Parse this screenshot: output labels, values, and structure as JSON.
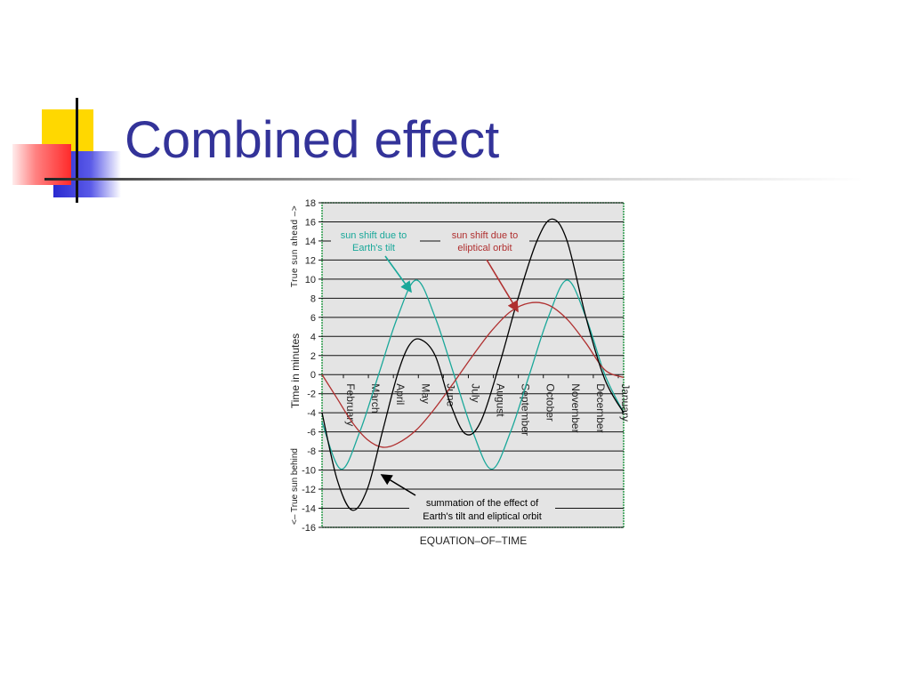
{
  "slide": {
    "title": "Combined effect"
  },
  "chart_data": {
    "type": "line",
    "xlabel": "EQUATION–OF–TIME",
    "ylabel": "Time in minutes",
    "ylabel_top": "True sun ahead –>",
    "ylabel_bottom": "<– True sun behind",
    "ylim": [
      -16,
      18
    ],
    "yticks": [
      18,
      16,
      14,
      12,
      10,
      8,
      6,
      4,
      2,
      0,
      -2,
      -4,
      -6,
      -8,
      -10,
      -12,
      -14,
      -16
    ],
    "categories": [
      "February",
      "March",
      "April",
      "May",
      "June",
      "July",
      "August",
      "September",
      "October",
      "November",
      "December",
      "January"
    ],
    "grid": true,
    "series": [
      {
        "name": "sun shift due to Earth's tilt",
        "color": "#1aa89a",
        "points": [
          [
            0,
            -5
          ],
          [
            0.5,
            -9.9
          ],
          [
            1,
            -6
          ],
          [
            1.5,
            0
          ],
          [
            2,
            6
          ],
          [
            2.5,
            9.9
          ],
          [
            3,
            6
          ],
          [
            3.5,
            0
          ],
          [
            4,
            -6
          ],
          [
            4.5,
            -9.9
          ],
          [
            5,
            -6
          ],
          [
            5.5,
            0
          ],
          [
            6,
            6
          ],
          [
            6.5,
            9.9
          ],
          [
            7,
            6
          ],
          [
            7.5,
            0
          ],
          [
            8,
            -4
          ]
        ]
      },
      {
        "name": "sun shift due to eliptical orbit",
        "color": "#b03030",
        "points": [
          [
            0,
            0
          ],
          [
            0.4,
            -2.5
          ],
          [
            0.8,
            -5
          ],
          [
            1.2,
            -6.8
          ],
          [
            1.6,
            -7.6
          ],
          [
            2,
            -7.2
          ],
          [
            2.5,
            -5.8
          ],
          [
            3,
            -3.5
          ],
          [
            3.5,
            -0.8
          ],
          [
            4,
            2
          ],
          [
            4.5,
            4.6
          ],
          [
            5,
            6.6
          ],
          [
            5.5,
            7.5
          ],
          [
            6,
            7.3
          ],
          [
            6.5,
            5.8
          ],
          [
            7,
            3.3
          ],
          [
            7.5,
            0.5
          ],
          [
            8,
            -0.3
          ]
        ]
      },
      {
        "name": "summation of the effect of Earth's tilt and eliptical orbit",
        "color": "#000000",
        "points": [
          [
            0,
            -4
          ],
          [
            0.4,
            -11
          ],
          [
            0.8,
            -14.2
          ],
          [
            1.2,
            -12
          ],
          [
            1.6,
            -6
          ],
          [
            2,
            0
          ],
          [
            2.3,
            3
          ],
          [
            2.6,
            3.7
          ],
          [
            3,
            2
          ],
          [
            3.4,
            -3
          ],
          [
            3.8,
            -6.2
          ],
          [
            4.2,
            -5
          ],
          [
            4.7,
            1
          ],
          [
            5.2,
            8
          ],
          [
            5.7,
            14
          ],
          [
            6.1,
            16.3
          ],
          [
            6.5,
            14
          ],
          [
            7,
            6
          ],
          [
            7.5,
            -0.5
          ],
          [
            8,
            -4
          ]
        ]
      }
    ],
    "annotations": [
      {
        "text": [
          "sun shift due to",
          "Earth's tilt"
        ],
        "color": "#1aa89a"
      },
      {
        "text": [
          "sun shift due to",
          "eliptical orbit"
        ],
        "color": "#b03030"
      },
      {
        "text": [
          "summation of the effect of",
          "Earth's tilt and eliptical orbit"
        ],
        "color": "#000000"
      }
    ]
  }
}
